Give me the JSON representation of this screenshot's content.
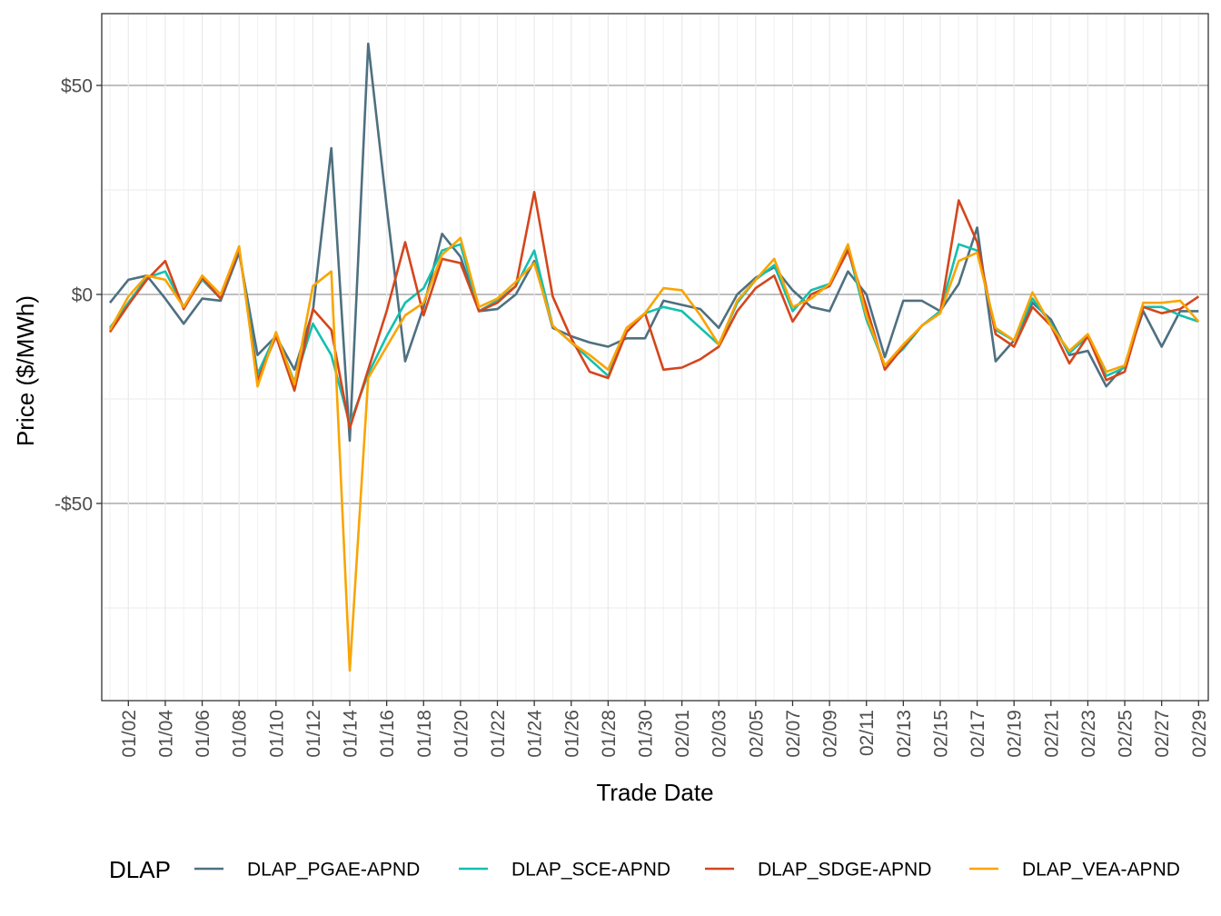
{
  "chart_data": {
    "type": "line",
    "title": "",
    "xlabel": "Trade Date",
    "ylabel": "Price ($/MWh)",
    "x": [
      "01/01",
      "01/02",
      "01/03",
      "01/04",
      "01/05",
      "01/06",
      "01/07",
      "01/08",
      "01/09",
      "01/10",
      "01/11",
      "01/12",
      "01/13",
      "01/14",
      "01/15",
      "01/16",
      "01/17",
      "01/18",
      "01/19",
      "01/20",
      "01/21",
      "01/22",
      "01/23",
      "01/24",
      "01/25",
      "01/26",
      "01/27",
      "01/28",
      "01/29",
      "01/30",
      "01/31",
      "02/01",
      "02/02",
      "02/03",
      "02/04",
      "02/05",
      "02/06",
      "02/07",
      "02/08",
      "02/09",
      "02/10",
      "02/11",
      "02/12",
      "02/13",
      "02/14",
      "02/15",
      "02/16",
      "02/17",
      "02/18",
      "02/19",
      "02/20",
      "02/21",
      "02/22",
      "02/23",
      "02/24",
      "02/25",
      "02/26",
      "02/27",
      "02/28",
      "02/29"
    ],
    "x_tick_labels": [
      "01/02",
      "01/04",
      "01/06",
      "01/08",
      "01/10",
      "01/12",
      "01/14",
      "01/16",
      "01/18",
      "01/20",
      "01/22",
      "01/24",
      "01/26",
      "01/28",
      "01/30",
      "02/01",
      "02/03",
      "02/05",
      "02/07",
      "02/09",
      "02/11",
      "02/13",
      "02/15",
      "02/17",
      "02/19",
      "02/21",
      "02/23",
      "02/25",
      "02/27",
      "02/29"
    ],
    "y_ticks": [
      -50,
      0,
      50
    ],
    "y_tick_labels": [
      "-$50",
      "$0",
      "$50"
    ],
    "ylim": [
      -97,
      67
    ],
    "grid": true,
    "legend": {
      "title": "DLAP",
      "position": "bottom"
    },
    "series": [
      {
        "name": "DLAP_PGAE-APND",
        "color": "#4e7080",
        "values": [
          -2,
          3.5,
          4.5,
          -1,
          -7,
          -1,
          -1.5,
          10,
          -14.5,
          -10,
          -18,
          -4,
          35,
          -35,
          60,
          21,
          -16,
          -3,
          14.5,
          9,
          -4,
          -3.5,
          0,
          8,
          -8,
          -10,
          -11.5,
          -12.5,
          -10.5,
          -10.5,
          -1.5,
          -2.5,
          -3.5,
          -8,
          0,
          4,
          6.5,
          1,
          -3,
          -4,
          5.5,
          0,
          -15,
          -1.5,
          -1.5,
          -4,
          2.5,
          16,
          -16,
          -11,
          -2,
          -6,
          -14.5,
          -13.5,
          -22,
          -17,
          -4,
          -12.5,
          -4,
          -4
        ]
      },
      {
        "name": "DLAP_SCE-APND",
        "color": "#13c0ae",
        "values": [
          -8,
          -2,
          4,
          5.5,
          -3,
          3.5,
          -1,
          11,
          -19,
          -9.5,
          -21,
          -7,
          -14.5,
          -31,
          -19,
          -10,
          -2,
          1.5,
          10.5,
          12,
          -4,
          -1.5,
          2,
          10.5,
          -7.5,
          -11.5,
          -15.5,
          -19.5,
          -9,
          -4.5,
          -3,
          -4,
          -8,
          -12,
          -2,
          3.5,
          7,
          -4,
          1,
          2.5,
          11,
          -6,
          -17,
          -13,
          -7.5,
          -4,
          12,
          10.5,
          -8.5,
          -11,
          -1,
          -7,
          -14,
          -10,
          -19.5,
          -17.5,
          -3,
          -3,
          -5,
          -6.5
        ]
      },
      {
        "name": "DLAP_SDGE-APND",
        "color": "#d5461c",
        "values": [
          -9,
          -2.5,
          3.5,
          8,
          -3.5,
          4,
          -1,
          11,
          -20.5,
          -10,
          -23,
          -3.5,
          -8.5,
          -32,
          -18,
          -4,
          12.5,
          -5,
          8.5,
          7.5,
          -4,
          -2,
          2,
          24.5,
          -0.5,
          -10.5,
          -18.5,
          -20,
          -9,
          -4.5,
          -18,
          -17.5,
          -15.5,
          -12.5,
          -4,
          1.5,
          4.5,
          -6.5,
          0,
          2,
          10.5,
          -3,
          -18,
          -12.5,
          -7.5,
          -4.5,
          22.5,
          12.5,
          -9.5,
          -12.5,
          -3,
          -7.5,
          -16.5,
          -10,
          -20.5,
          -18.5,
          -3,
          -4.5,
          -3.5,
          -0.5
        ]
      },
      {
        "name": "DLAP_VEA-APND",
        "color": "#f9a500",
        "values": [
          -8.5,
          -0.5,
          4.5,
          3.5,
          -3,
          4.5,
          0,
          11.5,
          -22,
          -9,
          -21.5,
          2,
          5.5,
          -90,
          -20,
          -12.5,
          -5,
          -2,
          9.5,
          13.5,
          -3,
          -1,
          3,
          7.5,
          -7.5,
          -11.5,
          -14.5,
          -18,
          -8,
          -4.5,
          1.5,
          1,
          -5,
          -12,
          -1.5,
          3.5,
          8.5,
          -3,
          -1,
          2.5,
          12,
          -5,
          -17,
          -12,
          -7.5,
          -4.5,
          8,
          10,
          -8,
          -11,
          0.5,
          -7.5,
          -13.5,
          -9.5,
          -18.5,
          -17,
          -2,
          -2,
          -1.5,
          -6.5
        ]
      }
    ]
  }
}
